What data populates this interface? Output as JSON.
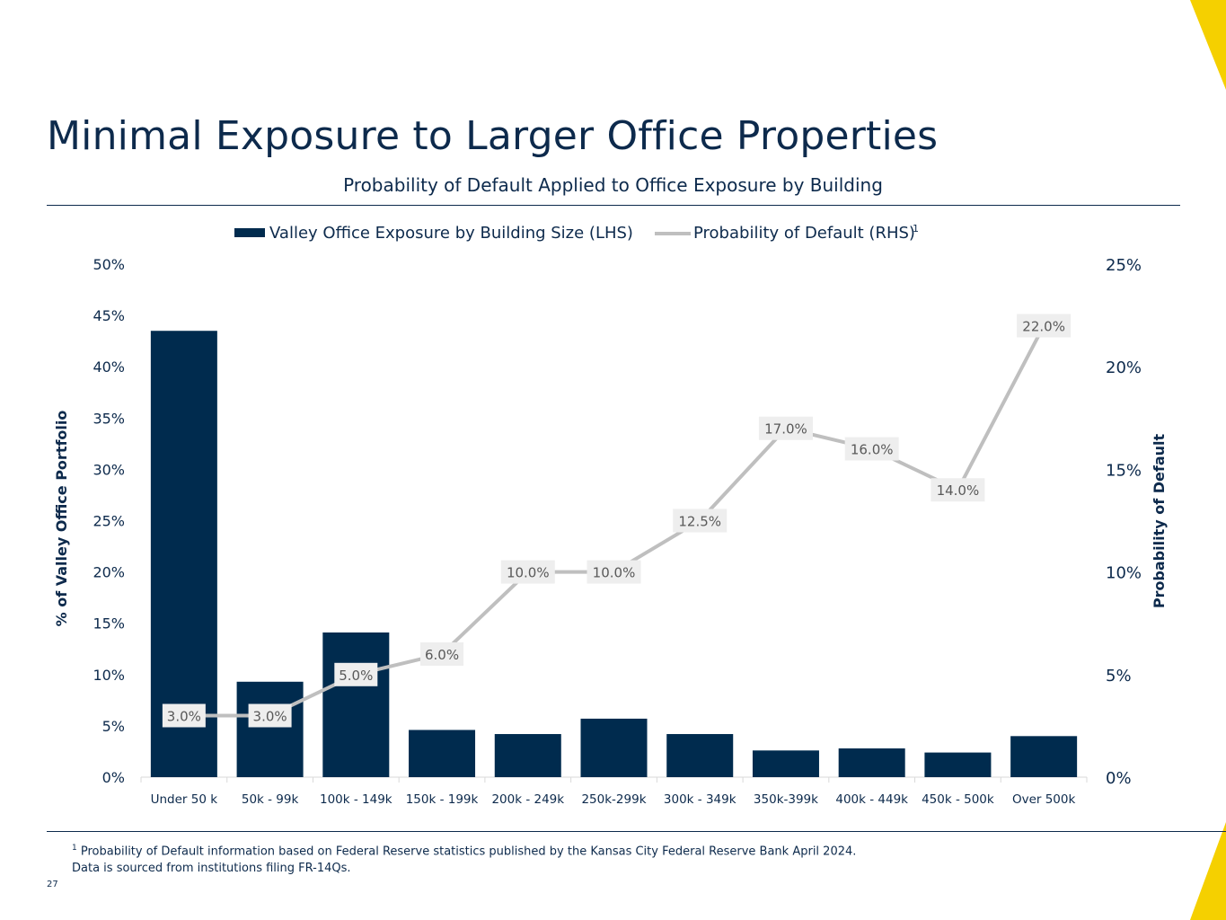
{
  "page": {
    "title": "Minimal Exposure to Larger Office Properties",
    "footnote_marker": "1",
    "footnote_line1": "Probability of Default information based on Federal Reserve statistics published by the Kansas City Federal Reserve Bank April 2024.",
    "footnote_line2": "Data is sourced from institutions filing FR-14Qs.",
    "page_number": "27",
    "colors": {
      "navy": "#002b4e",
      "gray_line": "#bfbfbf",
      "label_bg": "#eeeeee",
      "accent_yellow": "#f5d000"
    }
  },
  "chart_data": {
    "type": "bar",
    "title": "Probability of Default Applied to Office Exposure by Building",
    "categories": [
      "Under 50 k",
      "50k - 99k",
      "100k - 149k",
      "150k - 199k",
      "200k - 249k",
      "250k-299k",
      "300k - 349k",
      "350k-399k",
      "400k - 449k",
      "450k - 500k",
      "Over 500k"
    ],
    "series": [
      {
        "name": "Valley Office Exposure by Building Size (LHS)",
        "type": "bar",
        "axis": "left",
        "values": [
          43.5,
          9.3,
          14.1,
          4.6,
          4.2,
          5.7,
          4.2,
          2.6,
          2.8,
          2.4,
          4.0
        ]
      },
      {
        "name": "Probability of Default (RHS)",
        "name_superscript": "1",
        "type": "line",
        "axis": "right",
        "values": [
          3.0,
          3.0,
          5.0,
          6.0,
          10.0,
          10.0,
          12.5,
          17.0,
          16.0,
          14.0,
          22.0
        ],
        "labels": [
          "3.0%",
          "3.0%",
          "5.0%",
          "6.0%",
          "10.0%",
          "10.0%",
          "12.5%",
          "17.0%",
          "16.0%",
          "14.0%",
          "22.0%"
        ]
      }
    ],
    "y_left": {
      "label": "% of Valley Office Portfolio",
      "lim": [
        0,
        50
      ],
      "ticks": [
        0,
        5,
        10,
        15,
        20,
        25,
        30,
        35,
        40,
        45,
        50
      ],
      "tick_labels": [
        "0%",
        "5%",
        "10%",
        "15%",
        "20%",
        "25%",
        "30%",
        "35%",
        "40%",
        "45%",
        "50%"
      ]
    },
    "y_right": {
      "label": "Probability of Default",
      "lim": [
        0,
        25
      ],
      "ticks": [
        0,
        5,
        10,
        15,
        20,
        25
      ],
      "tick_labels": [
        "0%",
        "5%",
        "10%",
        "15%",
        "20%",
        "25%"
      ]
    },
    "grid": false,
    "legend_position": "top-center"
  }
}
